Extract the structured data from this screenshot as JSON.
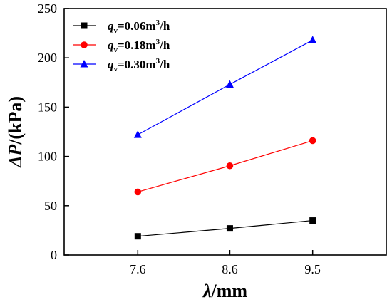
{
  "chart_data": {
    "type": "line",
    "xlabel_symbol": "λ",
    "xlabel_unit": "/mm",
    "ylabel_symbol": "ΔP",
    "ylabel_unit": "/(kPa)",
    "x": [
      7.6,
      8.6,
      9.5
    ],
    "x_tick_labels": [
      "7.6",
      "8.6",
      "9.5"
    ],
    "xlim": [
      6.8,
      10.3
    ],
    "ylim": [
      0,
      250
    ],
    "y_ticks": [
      0,
      50,
      100,
      150,
      200,
      250
    ],
    "grid": false,
    "legend_position": "top-left",
    "series": [
      {
        "name_symbol": "q",
        "name_sub": "v",
        "name_value": "=0.06m",
        "name_sup": "3",
        "name_tail": "/h",
        "color": "#000000",
        "marker": "square",
        "values": [
          19,
          27,
          35
        ]
      },
      {
        "name_symbol": "q",
        "name_sub": "v",
        "name_value": "=0.18m",
        "name_sup": "3",
        "name_tail": "/h",
        "color": "#ff0000",
        "marker": "circle",
        "values": [
          64,
          90.5,
          116
        ]
      },
      {
        "name_symbol": "q",
        "name_sub": "v",
        "name_value": "=0.30m",
        "name_sup": "3",
        "name_tail": "/h",
        "color": "#0000ff",
        "marker": "triangle-up",
        "values": [
          122,
          173,
          218
        ]
      }
    ]
  }
}
